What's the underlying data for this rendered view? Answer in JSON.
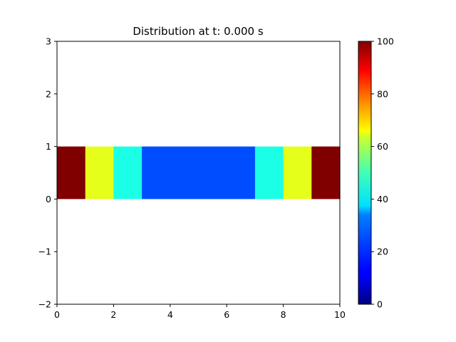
{
  "chart_data": {
    "type": "heatmap",
    "title": "Distribution at t: 0.000 s",
    "xlabel": "",
    "ylabel": "",
    "xlim": [
      0,
      10
    ],
    "ylim": [
      -2,
      3
    ],
    "xticks": [
      0,
      2,
      4,
      6,
      8,
      10
    ],
    "yticks": [
      -2,
      -1,
      0,
      1,
      2,
      3
    ],
    "grid": false,
    "colormap": "jet",
    "colorbar": {
      "range": [
        0,
        100
      ],
      "ticks": [
        0,
        20,
        40,
        60,
        80,
        100
      ],
      "position": "right"
    },
    "cells": [
      {
        "x0": 0,
        "x1": 1,
        "y0": 0,
        "y1": 1,
        "value": 100
      },
      {
        "x0": 1,
        "x1": 2,
        "y0": 0,
        "y1": 1,
        "value": 60
      },
      {
        "x0": 2,
        "x1": 3,
        "y0": 0,
        "y1": 1,
        "value": 40
      },
      {
        "x0": 3,
        "x1": 4,
        "y0": 0,
        "y1": 1,
        "value": 20
      },
      {
        "x0": 4,
        "x1": 5,
        "y0": 0,
        "y1": 1,
        "value": 20
      },
      {
        "x0": 5,
        "x1": 6,
        "y0": 0,
        "y1": 1,
        "value": 20
      },
      {
        "x0": 6,
        "x1": 7,
        "y0": 0,
        "y1": 1,
        "value": 20
      },
      {
        "x0": 7,
        "x1": 8,
        "y0": 0,
        "y1": 1,
        "value": 40
      },
      {
        "x0": 8,
        "x1": 9,
        "y0": 0,
        "y1": 1,
        "value": 60
      },
      {
        "x0": 9,
        "x1": 10,
        "y0": 0,
        "y1": 1,
        "value": 100
      }
    ]
  }
}
